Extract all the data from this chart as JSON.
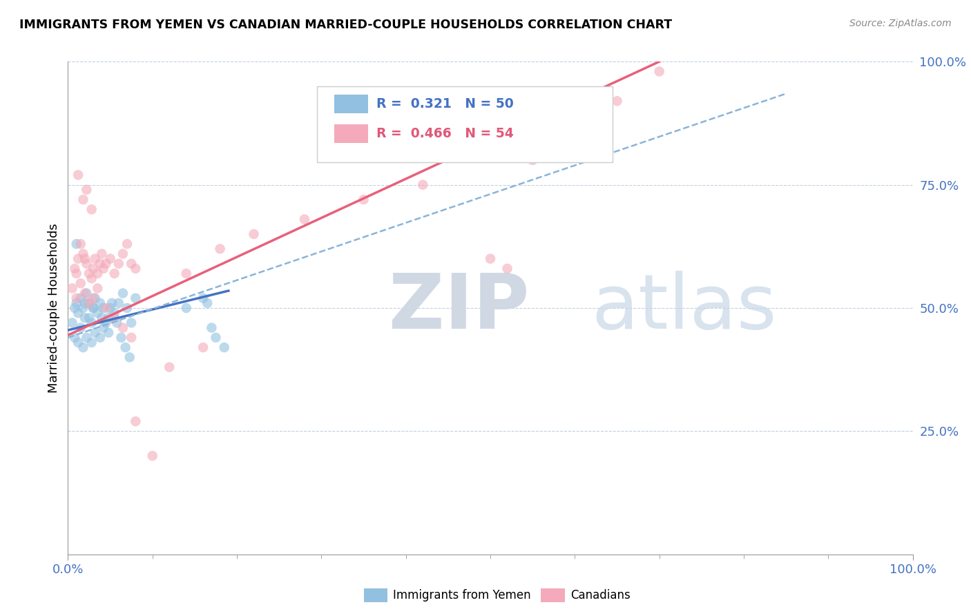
{
  "title": "IMMIGRANTS FROM YEMEN VS CANADIAN MARRIED-COUPLE HOUSEHOLDS CORRELATION CHART",
  "source_text": "Source: ZipAtlas.com",
  "ylabel": "Married-couple Households",
  "right_yticklabels": [
    "",
    "25.0%",
    "50.0%",
    "75.0%",
    "100.0%"
  ],
  "legend_blue_label": "R =  0.321   N = 50",
  "legend_pink_label": "R =  0.466   N = 54",
  "legend_blue_label2": "Immigrants from Yemen",
  "legend_pink_label2": "Canadians",
  "blue_color": "#92c0e0",
  "pink_color": "#f4aaba",
  "blue_line_color": "#4472c4",
  "pink_line_color": "#e8607a",
  "dashed_line_color": "#8ab4d8",
  "grid_color": "#c0d0e0",
  "watermark_zip": "ZIP",
  "watermark_atlas": "atlas",
  "watermark_color": "#d0dce8",
  "blue_scatter_x": [
    0.005,
    0.008,
    0.01,
    0.012,
    0.015,
    0.018,
    0.02,
    0.022,
    0.025,
    0.028,
    0.03,
    0.032,
    0.035,
    0.038,
    0.04,
    0.042,
    0.045,
    0.048,
    0.05,
    0.055,
    0.06,
    0.065,
    0.07,
    0.075,
    0.08,
    0.01,
    0.015,
    0.02,
    0.025,
    0.03,
    0.008,
    0.012,
    0.018,
    0.022,
    0.028,
    0.032,
    0.038,
    0.042,
    0.048,
    0.052,
    0.058,
    0.063,
    0.068,
    0.073,
    0.14,
    0.16,
    0.165,
    0.17,
    0.175,
    0.185
  ],
  "blue_scatter_y": [
    0.47,
    0.5,
    0.51,
    0.49,
    0.52,
    0.5,
    0.51,
    0.53,
    0.48,
    0.47,
    0.5,
    0.52,
    0.49,
    0.51,
    0.48,
    0.5,
    0.47,
    0.45,
    0.5,
    0.49,
    0.51,
    0.53,
    0.5,
    0.47,
    0.52,
    0.63,
    0.46,
    0.48,
    0.51,
    0.5,
    0.44,
    0.43,
    0.42,
    0.44,
    0.43,
    0.45,
    0.44,
    0.46,
    0.48,
    0.51,
    0.47,
    0.44,
    0.42,
    0.4,
    0.5,
    0.52,
    0.51,
    0.46,
    0.44,
    0.42
  ],
  "pink_scatter_x": [
    0.005,
    0.008,
    0.01,
    0.012,
    0.015,
    0.018,
    0.02,
    0.022,
    0.025,
    0.028,
    0.03,
    0.032,
    0.035,
    0.038,
    0.04,
    0.042,
    0.045,
    0.05,
    0.055,
    0.06,
    0.065,
    0.07,
    0.075,
    0.08,
    0.01,
    0.015,
    0.02,
    0.025,
    0.03,
    0.035,
    0.012,
    0.018,
    0.022,
    0.028,
    0.045,
    0.055,
    0.065,
    0.075,
    0.14,
    0.18,
    0.22,
    0.28,
    0.35,
    0.42,
    0.5,
    0.52,
    0.55,
    0.6,
    0.65,
    0.7,
    0.08,
    0.1,
    0.12,
    0.16
  ],
  "pink_scatter_y": [
    0.54,
    0.58,
    0.57,
    0.6,
    0.63,
    0.61,
    0.6,
    0.59,
    0.57,
    0.56,
    0.58,
    0.6,
    0.57,
    0.59,
    0.61,
    0.58,
    0.59,
    0.6,
    0.57,
    0.59,
    0.61,
    0.63,
    0.59,
    0.58,
    0.52,
    0.55,
    0.53,
    0.51,
    0.52,
    0.54,
    0.77,
    0.72,
    0.74,
    0.7,
    0.5,
    0.48,
    0.46,
    0.44,
    0.57,
    0.62,
    0.65,
    0.68,
    0.72,
    0.75,
    0.6,
    0.58,
    0.8,
    0.88,
    0.92,
    0.98,
    0.27,
    0.2,
    0.38,
    0.42
  ],
  "blue_line_x": [
    0.0,
    0.19
  ],
  "blue_line_y": [
    0.455,
    0.535
  ],
  "pink_line_x": [
    0.0,
    0.7
  ],
  "pink_line_y": [
    0.445,
    1.0
  ],
  "dashed_line_x": [
    0.0,
    0.85
  ],
  "dashed_line_y": [
    0.44,
    0.935
  ],
  "xlim": [
    0.0,
    1.0
  ],
  "ylim": [
    0.0,
    1.0
  ],
  "figsize": [
    14.06,
    8.92
  ]
}
